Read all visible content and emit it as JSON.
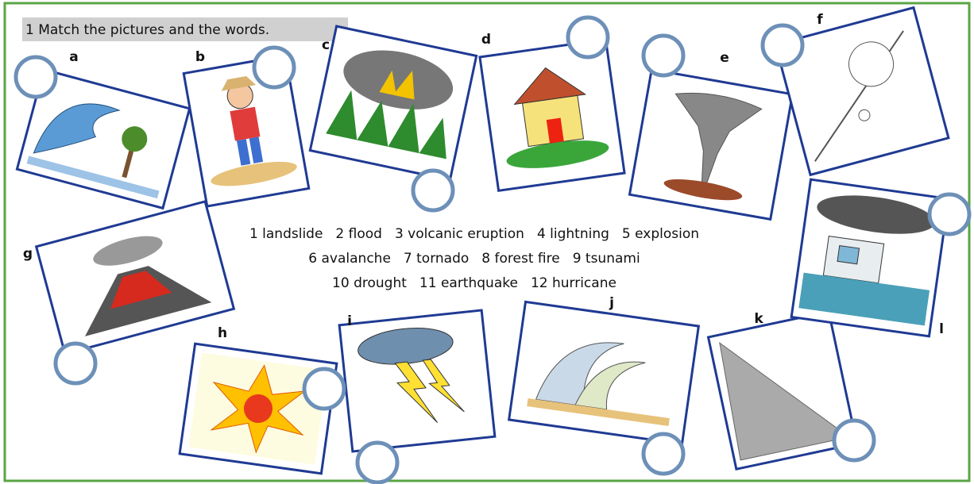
{
  "title": "1 Match the pictures and the words.",
  "pictures": [
    {
      "letter": "a"
    },
    {
      "letter": "b"
    },
    {
      "letter": "c"
    },
    {
      "letter": "d"
    },
    {
      "letter": "e"
    },
    {
      "letter": "f"
    },
    {
      "letter": "g"
    },
    {
      "letter": "h"
    },
    {
      "letter": "i"
    },
    {
      "letter": "j"
    },
    {
      "letter": "k"
    },
    {
      "letter": "l"
    }
  ],
  "word_lines": [
    [
      "1 landslide",
      "2 flood",
      "3 volcanic eruption",
      "4 lightning",
      "5 explosion"
    ],
    [
      "6 avalanche",
      "7 tornado",
      "8 forest fire",
      "9 tsunami"
    ],
    [
      "10 drought",
      "11 earthquake",
      "12 hurricane"
    ]
  ]
}
